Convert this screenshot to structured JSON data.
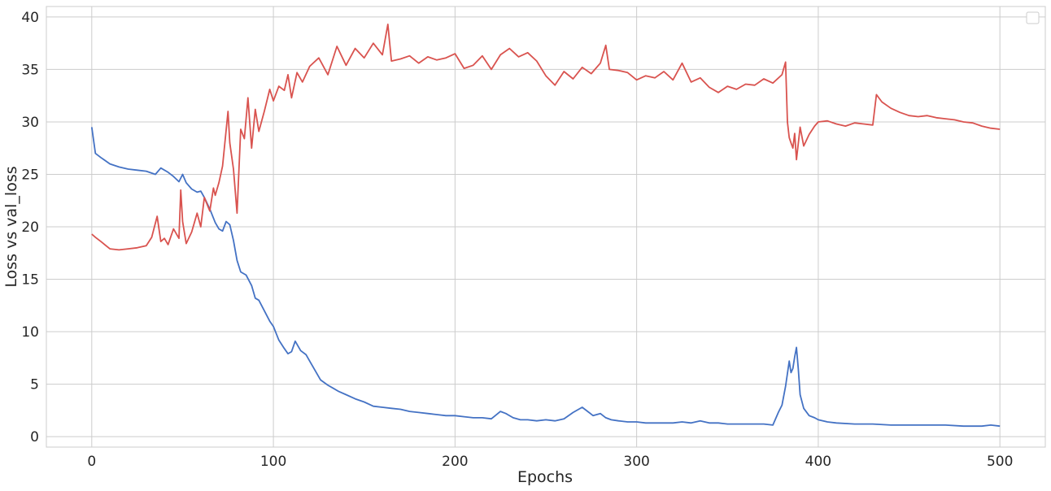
{
  "chart_data": {
    "type": "line",
    "title": "",
    "xlabel": "Epochs",
    "ylabel": "Loss vs val_loss",
    "xlim": [
      -25,
      525
    ],
    "ylim": [
      -1,
      41
    ],
    "grid": true,
    "legend": "upper-right (empty)",
    "xticks": [
      0,
      100,
      200,
      300,
      400,
      500
    ],
    "yticks": [
      0,
      5,
      10,
      15,
      20,
      25,
      30,
      35,
      40
    ],
    "series": [
      {
        "color": "#4472c4",
        "x": [
          0,
          2,
          5,
          10,
          15,
          20,
          25,
          30,
          35,
          38,
          42,
          45,
          48,
          50,
          52,
          55,
          58,
          60,
          62,
          65,
          68,
          70,
          72,
          74,
          76,
          78,
          80,
          82,
          85,
          88,
          90,
          92,
          95,
          98,
          100,
          103,
          106,
          108,
          110,
          112,
          115,
          118,
          120,
          123,
          126,
          130,
          133,
          136,
          140,
          145,
          150,
          155,
          160,
          165,
          170,
          175,
          180,
          185,
          190,
          195,
          200,
          205,
          210,
          215,
          220,
          225,
          228,
          232,
          236,
          240,
          245,
          250,
          255,
          260,
          265,
          270,
          273,
          276,
          280,
          283,
          286,
          290,
          295,
          300,
          305,
          310,
          315,
          320,
          325,
          330,
          335,
          340,
          345,
          350,
          355,
          360,
          365,
          370,
          375,
          378,
          380,
          382,
          384,
          385,
          386,
          387,
          388,
          389,
          390,
          392,
          395,
          398,
          400,
          405,
          410,
          420,
          430,
          440,
          450,
          460,
          470,
          480,
          490,
          495,
          500
        ],
        "y": [
          29.5,
          27.0,
          26.6,
          26.0,
          25.7,
          25.5,
          25.4,
          25.3,
          25.0,
          25.6,
          25.2,
          24.8,
          24.3,
          25.0,
          24.2,
          23.6,
          23.3,
          23.4,
          22.8,
          21.7,
          20.4,
          19.8,
          19.6,
          20.5,
          20.2,
          18.7,
          16.8,
          15.7,
          15.4,
          14.4,
          13.2,
          13.0,
          12.0,
          11.0,
          10.5,
          9.2,
          8.4,
          7.9,
          8.1,
          9.1,
          8.2,
          7.8,
          7.2,
          6.3,
          5.4,
          4.9,
          4.6,
          4.3,
          4.0,
          3.6,
          3.3,
          2.9,
          2.8,
          2.7,
          2.6,
          2.4,
          2.3,
          2.2,
          2.1,
          2.0,
          2.0,
          1.9,
          1.8,
          1.8,
          1.7,
          2.4,
          2.2,
          1.8,
          1.6,
          1.6,
          1.5,
          1.6,
          1.5,
          1.7,
          2.3,
          2.8,
          2.4,
          2.0,
          2.2,
          1.8,
          1.6,
          1.5,
          1.4,
          1.4,
          1.3,
          1.3,
          1.3,
          1.3,
          1.4,
          1.3,
          1.5,
          1.3,
          1.3,
          1.2,
          1.2,
          1.2,
          1.2,
          1.2,
          1.1,
          2.3,
          3.0,
          4.8,
          7.2,
          6.1,
          6.5,
          7.6,
          8.5,
          6.5,
          4.0,
          2.7,
          2.0,
          1.8,
          1.6,
          1.4,
          1.3,
          1.2,
          1.2,
          1.1,
          1.1,
          1.1,
          1.1,
          1.0,
          1.0,
          1.1,
          1.0
        ]
      },
      {
        "color": "#d9534f",
        "x": [
          0,
          2,
          5,
          10,
          15,
          20,
          25,
          30,
          33,
          36,
          38,
          40,
          42,
          45,
          48,
          49,
          50,
          52,
          55,
          58,
          60,
          62,
          65,
          67,
          68,
          70,
          72,
          75,
          76,
          78,
          80,
          82,
          84,
          86,
          88,
          90,
          92,
          95,
          98,
          100,
          103,
          106,
          108,
          110,
          113,
          116,
          120,
          125,
          130,
          135,
          140,
          145,
          150,
          155,
          160,
          163,
          165,
          170,
          175,
          180,
          185,
          190,
          195,
          200,
          205,
          210,
          215,
          220,
          225,
          230,
          235,
          240,
          245,
          250,
          255,
          260,
          265,
          270,
          275,
          280,
          283,
          285,
          290,
          295,
          300,
          305,
          310,
          315,
          320,
          325,
          330,
          335,
          340,
          345,
          350,
          355,
          360,
          365,
          370,
          375,
          380,
          382,
          383,
          384,
          385,
          386,
          387,
          388,
          390,
          392,
          395,
          398,
          400,
          405,
          410,
          415,
          420,
          425,
          430,
          432,
          435,
          440,
          445,
          450,
          455,
          460,
          465,
          470,
          475,
          480,
          485,
          490,
          495,
          500
        ],
        "y": [
          19.3,
          19.0,
          18.6,
          17.9,
          17.8,
          17.9,
          18.0,
          18.2,
          19.0,
          21.0,
          18.6,
          18.9,
          18.3,
          19.8,
          18.9,
          23.5,
          20.5,
          18.4,
          19.5,
          21.3,
          20.0,
          22.8,
          21.5,
          23.7,
          23.0,
          24.2,
          25.8,
          31.0,
          28.0,
          25.5,
          21.3,
          29.3,
          28.4,
          32.3,
          27.5,
          31.2,
          29.1,
          31.0,
          33.1,
          32.0,
          33.4,
          33.0,
          34.5,
          32.3,
          34.7,
          33.8,
          35.3,
          36.1,
          34.5,
          37.2,
          35.4,
          37.0,
          36.1,
          37.5,
          36.4,
          39.3,
          35.8,
          36.0,
          36.3,
          35.6,
          36.2,
          35.9,
          36.1,
          36.5,
          35.1,
          35.4,
          36.3,
          35.0,
          36.4,
          37.0,
          36.2,
          36.6,
          35.8,
          34.4,
          33.5,
          34.8,
          34.1,
          35.2,
          34.6,
          35.6,
          37.3,
          35.0,
          34.9,
          34.7,
          34.0,
          34.4,
          34.2,
          34.8,
          34.0,
          35.6,
          33.8,
          34.2,
          33.3,
          32.8,
          33.4,
          33.1,
          33.6,
          33.5,
          34.1,
          33.7,
          34.5,
          35.7,
          30.0,
          28.5,
          28.0,
          27.5,
          28.9,
          26.4,
          29.5,
          27.7,
          28.8,
          29.6,
          30.0,
          30.1,
          29.8,
          29.6,
          29.9,
          29.8,
          29.7,
          32.6,
          31.9,
          31.3,
          30.9,
          30.6,
          30.5,
          30.6,
          30.4,
          30.3,
          30.2,
          30.0,
          29.9,
          29.6,
          29.4,
          29.3
        ]
      }
    ]
  }
}
